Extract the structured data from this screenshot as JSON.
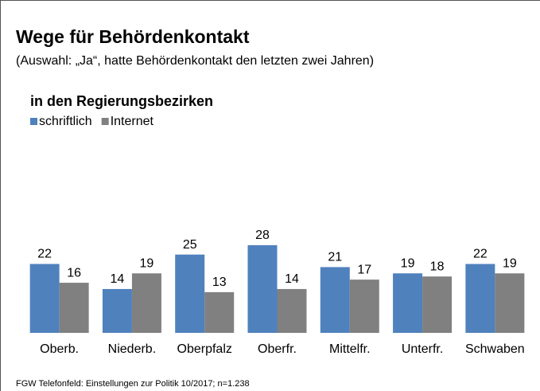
{
  "chart_data": {
    "type": "bar",
    "title": "Wege für Behördenkontakt",
    "subtitle": "(Auswahl: „Ja“, hatte Behördenkontakt den letzten zwei Jahren)",
    "chart_title": "in den Regierungsbezirken",
    "categories": [
      "Oberb.",
      "Niederb.",
      "Oberpfalz",
      "Oberfr.",
      "Mittelfr.",
      "Unterfr.",
      "Schwaben"
    ],
    "series": [
      {
        "name": "schriftlich",
        "color": "#4f81bd",
        "values": [
          22,
          14,
          25,
          28,
          21,
          19,
          22
        ]
      },
      {
        "name": "Internet",
        "color": "#808080",
        "values": [
          16,
          19,
          13,
          14,
          17,
          18,
          19
        ]
      }
    ],
    "ylim": [
      0,
      30
    ],
    "source": "FGW Telefonfeld: Einstellungen zur Politik 10/2017; n=1.238"
  }
}
